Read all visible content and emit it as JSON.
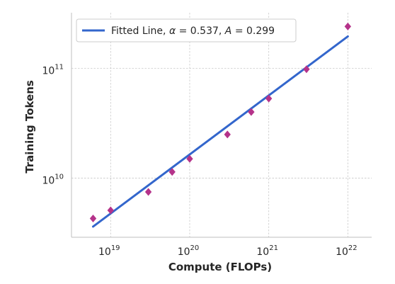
{
  "chart_data": {
    "type": "scatter",
    "title": "",
    "xlabel": "Compute (FLOPs)",
    "ylabel": "Training Tokens",
    "xscale": "log",
    "yscale": "log",
    "xlim": [
      3.2e+18,
      2e+22
    ],
    "ylim": [
      2900000000.0,
      320000000000.0
    ],
    "grid": true,
    "legend_position": "top-left",
    "x_ticks": [
      {
        "base": "10",
        "exp": "19",
        "value": 1e+19
      },
      {
        "base": "10",
        "exp": "20",
        "value": 1e+20
      },
      {
        "base": "10",
        "exp": "21",
        "value": 1e+21
      },
      {
        "base": "10",
        "exp": "22",
        "value": 1e+22
      }
    ],
    "y_ticks": [
      {
        "base": "10",
        "exp": "10",
        "value": 10000000000.0
      },
      {
        "base": "10",
        "exp": "11",
        "value": 100000000000.0
      }
    ],
    "series": [
      {
        "kind": "scatter",
        "marker": "diamond",
        "color": "#b5338a",
        "x": [
          6e+18,
          1e+19,
          3e+19,
          6e+19,
          1e+20,
          3e+20,
          6e+20,
          1e+21,
          3e+21,
          1e+22
        ],
        "y": [
          4300000000.0,
          5100000000.0,
          7500000000.0,
          11400000000.0,
          15000000000.0,
          25000000000.0,
          40000000000.0,
          53000000000.0,
          98000000000.0,
          240000000000.0
        ]
      },
      {
        "kind": "line",
        "color": "#3366cc",
        "alpha": 0.537,
        "A": 0.299,
        "x": [
          6e+18,
          1e+22
        ]
      }
    ],
    "legend": {
      "prefix": "Fitted Line, ",
      "alpha_symbol": "α",
      "alpha_value": " = 0.537, ",
      "A_symbol": "A",
      "A_value": " = 0.299"
    }
  }
}
